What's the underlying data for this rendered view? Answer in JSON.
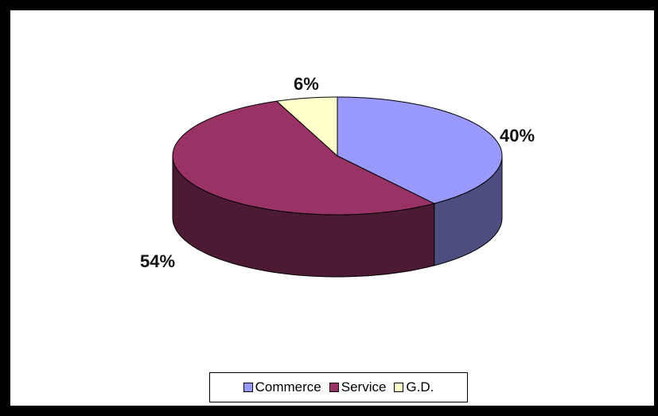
{
  "chart_data": {
    "type": "pie",
    "categories": [
      "Commerce",
      "Service",
      "G.D."
    ],
    "values": [
      40,
      54,
      6
    ],
    "labels": [
      "40%",
      "54%",
      "6%"
    ],
    "colors": [
      "#9999ff",
      "#993366",
      "#ffffcc"
    ],
    "side_colors": [
      "#4d4d80",
      "#4d1a33",
      "#808066"
    ],
    "legend_position": "bottom",
    "style": "3d"
  }
}
